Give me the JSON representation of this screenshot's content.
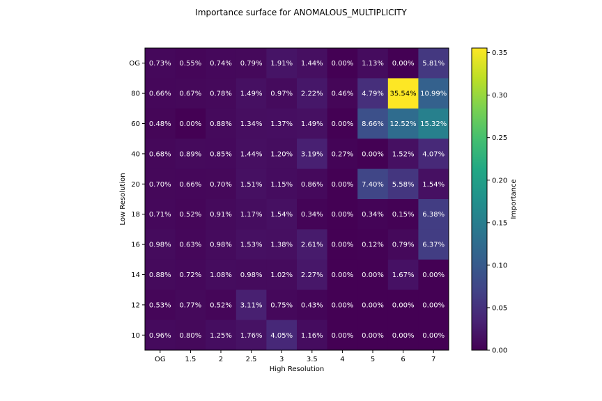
{
  "chart_data": {
    "type": "heatmap",
    "title": "Importance surface for ANOMALOUS_MULTIPLICITY",
    "xlabel": "High Resolution",
    "ylabel": "Low Resolution",
    "x_categories": [
      "OG",
      "1.5",
      "2",
      "2.5",
      "3",
      "3.5",
      "4",
      "5",
      "6",
      "7"
    ],
    "y_categories": [
      "OG",
      "80",
      "60",
      "40",
      "20",
      "18",
      "16",
      "14",
      "12",
      "10"
    ],
    "values": [
      [
        0.0073,
        0.0055,
        0.0074,
        0.0079,
        0.0191,
        0.0144,
        0.0,
        0.0113,
        0.0,
        0.0581
      ],
      [
        0.0066,
        0.0067,
        0.0078,
        0.0149,
        0.0097,
        0.0222,
        0.0046,
        0.0479,
        0.3554,
        0.1099
      ],
      [
        0.0048,
        0.0,
        0.0088,
        0.0134,
        0.0137,
        0.0149,
        0.0,
        0.0866,
        0.1252,
        0.1532
      ],
      [
        0.0068,
        0.0089,
        0.0085,
        0.0144,
        0.012,
        0.0319,
        0.0027,
        0.0,
        0.0152,
        0.0407
      ],
      [
        0.007,
        0.0066,
        0.007,
        0.0151,
        0.0115,
        0.0086,
        0.0,
        0.074,
        0.0558,
        0.0154
      ],
      [
        0.0071,
        0.0052,
        0.0091,
        0.0117,
        0.0154,
        0.0034,
        0.0,
        0.0034,
        0.0015,
        0.0638
      ],
      [
        0.0098,
        0.0063,
        0.0098,
        0.0153,
        0.0138,
        0.0261,
        0.0,
        0.0012,
        0.0079,
        0.0637
      ],
      [
        0.0088,
        0.0072,
        0.0108,
        0.0098,
        0.0102,
        0.0227,
        0.0,
        0.0,
        0.0167,
        0.0
      ],
      [
        0.0053,
        0.0077,
        0.0052,
        0.0311,
        0.0075,
        0.0043,
        0.0,
        0.0,
        0.0,
        0.0
      ],
      [
        0.0096,
        0.008,
        0.0125,
        0.0176,
        0.0405,
        0.0116,
        0.0,
        0.0,
        0.0,
        0.0
      ]
    ],
    "cell_labels": [
      [
        "0.73%",
        "0.55%",
        "0.74%",
        "0.79%",
        "1.91%",
        "1.44%",
        "0.00%",
        "1.13%",
        "0.00%",
        "5.81%"
      ],
      [
        "0.66%",
        "0.67%",
        "0.78%",
        "1.49%",
        "0.97%",
        "2.22%",
        "0.46%",
        "4.79%",
        "35.54%",
        "10.99%"
      ],
      [
        "0.48%",
        "0.00%",
        "0.88%",
        "1.34%",
        "1.37%",
        "1.49%",
        "0.00%",
        "8.66%",
        "12.52%",
        "15.32%"
      ],
      [
        "0.68%",
        "0.89%",
        "0.85%",
        "1.44%",
        "1.20%",
        "3.19%",
        "0.27%",
        "0.00%",
        "1.52%",
        "4.07%"
      ],
      [
        "0.70%",
        "0.66%",
        "0.70%",
        "1.51%",
        "1.15%",
        "0.86%",
        "0.00%",
        "7.40%",
        "5.58%",
        "1.54%"
      ],
      [
        "0.71%",
        "0.52%",
        "0.91%",
        "1.17%",
        "1.54%",
        "0.34%",
        "0.00%",
        "0.34%",
        "0.15%",
        "6.38%"
      ],
      [
        "0.98%",
        "0.63%",
        "0.98%",
        "1.53%",
        "1.38%",
        "2.61%",
        "0.00%",
        "0.12%",
        "0.79%",
        "6.37%"
      ],
      [
        "0.88%",
        "0.72%",
        "1.08%",
        "0.98%",
        "1.02%",
        "2.27%",
        "0.00%",
        "0.00%",
        "1.67%",
        "0.00%"
      ],
      [
        "0.53%",
        "0.77%",
        "0.52%",
        "3.11%",
        "0.75%",
        "0.43%",
        "0.00%",
        "0.00%",
        "0.00%",
        "0.00%"
      ],
      [
        "0.96%",
        "0.80%",
        "1.25%",
        "1.76%",
        "4.05%",
        "1.16%",
        "0.00%",
        "0.00%",
        "0.00%",
        "0.00%"
      ]
    ],
    "colormap": "viridis",
    "vmin": 0,
    "vmax": 0.3554,
    "colorbar": {
      "label": "Importance",
      "ticks": [
        0.0,
        0.05,
        0.1,
        0.15,
        0.2,
        0.25,
        0.3,
        0.35
      ],
      "tick_labels": [
        "0.00",
        "0.05",
        "0.10",
        "0.15",
        "0.20",
        "0.25",
        "0.30",
        "0.35"
      ]
    }
  }
}
